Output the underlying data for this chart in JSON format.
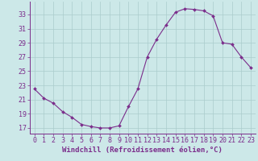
{
  "x": [
    0,
    1,
    2,
    3,
    4,
    5,
    6,
    7,
    8,
    9,
    10,
    11,
    12,
    13,
    14,
    15,
    16,
    17,
    18,
    19,
    20,
    21,
    22,
    23
  ],
  "y": [
    22.5,
    21.2,
    20.5,
    19.3,
    18.5,
    17.5,
    17.2,
    17.0,
    17.0,
    17.3,
    20.0,
    22.5,
    27.0,
    29.5,
    31.5,
    33.3,
    33.8,
    33.7,
    33.5,
    32.8,
    29.0,
    28.8,
    27.0,
    25.5
  ],
  "line_color": "#7b2d8b",
  "marker": "D",
  "marker_size": 2.0,
  "bg_color": "#cce8e8",
  "grid_color": "#aacccc",
  "xlabel": "Windchill (Refroidissement éolien,°C)",
  "yticks": [
    17,
    19,
    21,
    23,
    25,
    27,
    29,
    31,
    33
  ],
  "xticks": [
    0,
    1,
    2,
    3,
    4,
    5,
    6,
    7,
    8,
    9,
    10,
    11,
    12,
    13,
    14,
    15,
    16,
    17,
    18,
    19,
    20,
    21,
    22,
    23
  ],
  "ylim": [
    16.2,
    34.8
  ],
  "xlim": [
    -0.5,
    23.5
  ],
  "xlabel_color": "#7b2d8b",
  "xlabel_fontsize": 6.5,
  "tick_fontsize": 6.0,
  "tick_color": "#7b2d8b",
  "axis_color": "#7b2d8b",
  "linewidth": 0.8
}
